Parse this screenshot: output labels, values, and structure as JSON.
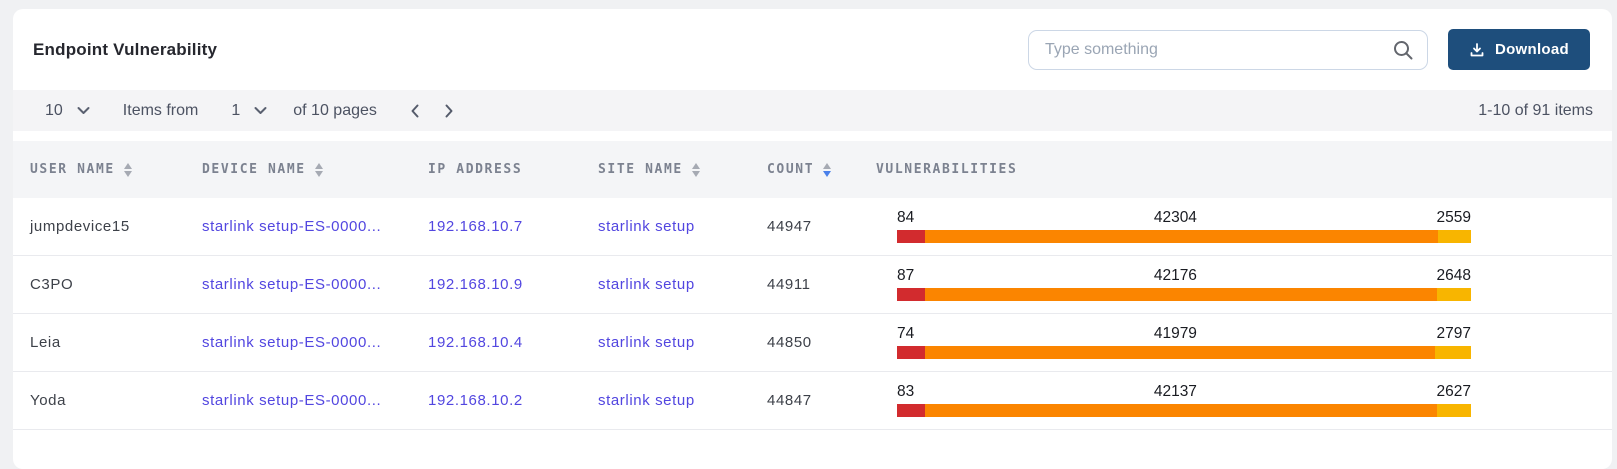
{
  "header": {
    "title": "Endpoint Vulnerability",
    "search_placeholder": "Type something",
    "download_label": "Download"
  },
  "pagination": {
    "page_size": "10",
    "items_from_label": "Items from",
    "page_number": "1",
    "pages_label": "of 10 pages",
    "range_label": "1-10 of 91 items"
  },
  "table": {
    "columns": [
      {
        "key": "user_name",
        "label": "USER NAME",
        "sortable": true,
        "sort": "none"
      },
      {
        "key": "device_name",
        "label": "DEVICE NAME",
        "sortable": true,
        "sort": "none"
      },
      {
        "key": "ip_address",
        "label": "IP ADDRESS",
        "sortable": false,
        "sort": "none"
      },
      {
        "key": "site_name",
        "label": "SITE NAME",
        "sortable": true,
        "sort": "none"
      },
      {
        "key": "count",
        "label": "COUNT",
        "sortable": true,
        "sort": "desc"
      },
      {
        "key": "vulnerabilities",
        "label": "VULNERABILITIES",
        "sortable": false,
        "sort": "none"
      }
    ],
    "rows": [
      {
        "user_name": "jumpdevice15",
        "device_name": "starlink setup-ES-0000...",
        "ip_address": "192.168.10.7",
        "site_name": "starlink setup",
        "count": "44947",
        "vulnerabilities": [
          84,
          42304,
          2559
        ]
      },
      {
        "user_name": "C3PO",
        "device_name": "starlink setup-ES-0000...",
        "ip_address": "192.168.10.9",
        "site_name": "starlink setup",
        "count": "44911",
        "vulnerabilities": [
          87,
          42176,
          2648
        ]
      },
      {
        "user_name": "Leia",
        "device_name": "starlink setup-ES-0000...",
        "ip_address": "192.168.10.4",
        "site_name": "starlink setup",
        "count": "44850",
        "vulnerabilities": [
          74,
          41979,
          2797
        ]
      },
      {
        "user_name": "Yoda",
        "device_name": "starlink setup-ES-0000...",
        "ip_address": "192.168.10.2",
        "site_name": "starlink setup",
        "count": "44847",
        "vulnerabilities": [
          83,
          42137,
          2627
        ]
      }
    ]
  },
  "colors": {
    "bar_segments": [
      "#d22b2e",
      "#fb8500",
      "#f8b500"
    ],
    "link": "#5246e0",
    "accent_button": "#1e4e7c",
    "sort_active": "#4a80ea"
  }
}
